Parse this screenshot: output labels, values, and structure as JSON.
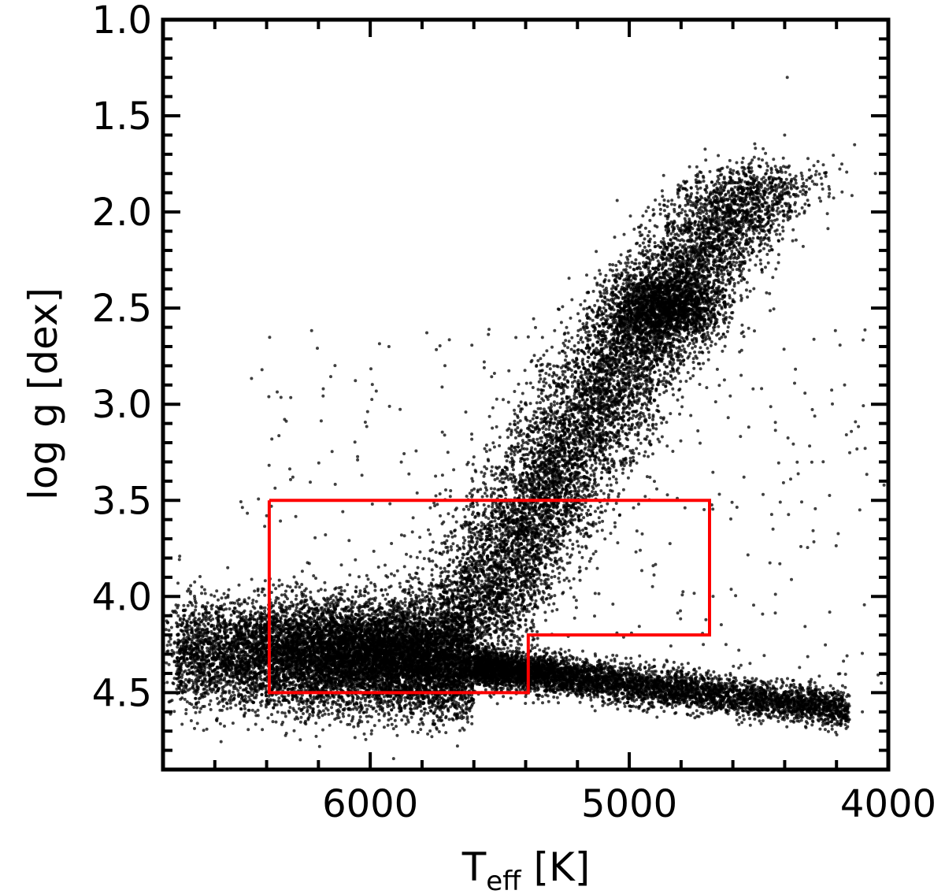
{
  "chart_data": {
    "type": "scatter",
    "title": "",
    "xlabel_main": "T",
    "xlabel_sub": "eff",
    "xlabel_unit": " [K]",
    "ylabel": "log g [dex]",
    "xlim": [
      6800,
      4000
    ],
    "ylim": [
      4.9,
      1.0
    ],
    "x_reversed": true,
    "y_reversed": true,
    "x_ticks": [
      6000,
      5000,
      4000
    ],
    "x_tick_labels": [
      "6000",
      "5000",
      "4000"
    ],
    "y_ticks": [
      1.0,
      1.5,
      2.0,
      2.5,
      3.0,
      3.5,
      4.0,
      4.5
    ],
    "y_tick_labels": [
      "1.0",
      "1.5",
      "2.0",
      "2.5",
      "3.0",
      "3.5",
      "4.0",
      "4.5"
    ],
    "x_minor_step": 200,
    "y_minor_step": 0.1,
    "grid": false,
    "legend": "none",
    "marker_color": "#000000",
    "selection_color": "#ff0000",
    "selection_region": [
      [
        6390,
        3.5
      ],
      [
        4690,
        3.5
      ],
      [
        4690,
        4.2
      ],
      [
        5390,
        4.2
      ],
      [
        5390,
        4.5
      ],
      [
        6390,
        4.5
      ],
      [
        6390,
        3.5
      ]
    ],
    "distribution": {
      "description_only_for_rendering": false,
      "main_sequence_turnoff": {
        "teff": 5950,
        "logg": 4.35
      },
      "main_sequence_cool_end": {
        "teff": 4200,
        "logg": 4.58
      },
      "red_giant_clump": {
        "teff": 4850,
        "logg": 2.5
      },
      "giant_branch_tip": {
        "teff": 4300,
        "logg": 1.6
      },
      "approx_total_points": 30000
    },
    "series": [
      {
        "values_note": "",
        "points_sample": [
          [
            6720,
            4.32
          ],
          [
            6650,
            3.95
          ],
          [
            6550,
            3.85
          ],
          [
            6400,
            3.58
          ],
          [
            5980,
            4.35
          ],
          [
            5800,
            4.3
          ],
          [
            5600,
            4.45
          ],
          [
            5400,
            4.52
          ],
          [
            5000,
            4.57
          ],
          [
            4600,
            4.58
          ],
          [
            4200,
            4.58
          ],
          [
            4100,
            4.6
          ],
          [
            5300,
            3.9
          ],
          [
            5100,
            3.5
          ],
          [
            4950,
            3.0
          ],
          [
            4850,
            2.5
          ],
          [
            4700,
            2.2
          ],
          [
            4500,
            1.95
          ],
          [
            4400,
            1.6
          ],
          [
            4390,
            1.3
          ],
          [
            4050,
            1.8
          ],
          [
            4130,
            1.65
          ],
          [
            5200,
            2.72
          ],
          [
            5390,
            2.65
          ],
          [
            5560,
            2.78
          ],
          [
            5700,
            3.25
          ]
        ]
      }
    ]
  }
}
